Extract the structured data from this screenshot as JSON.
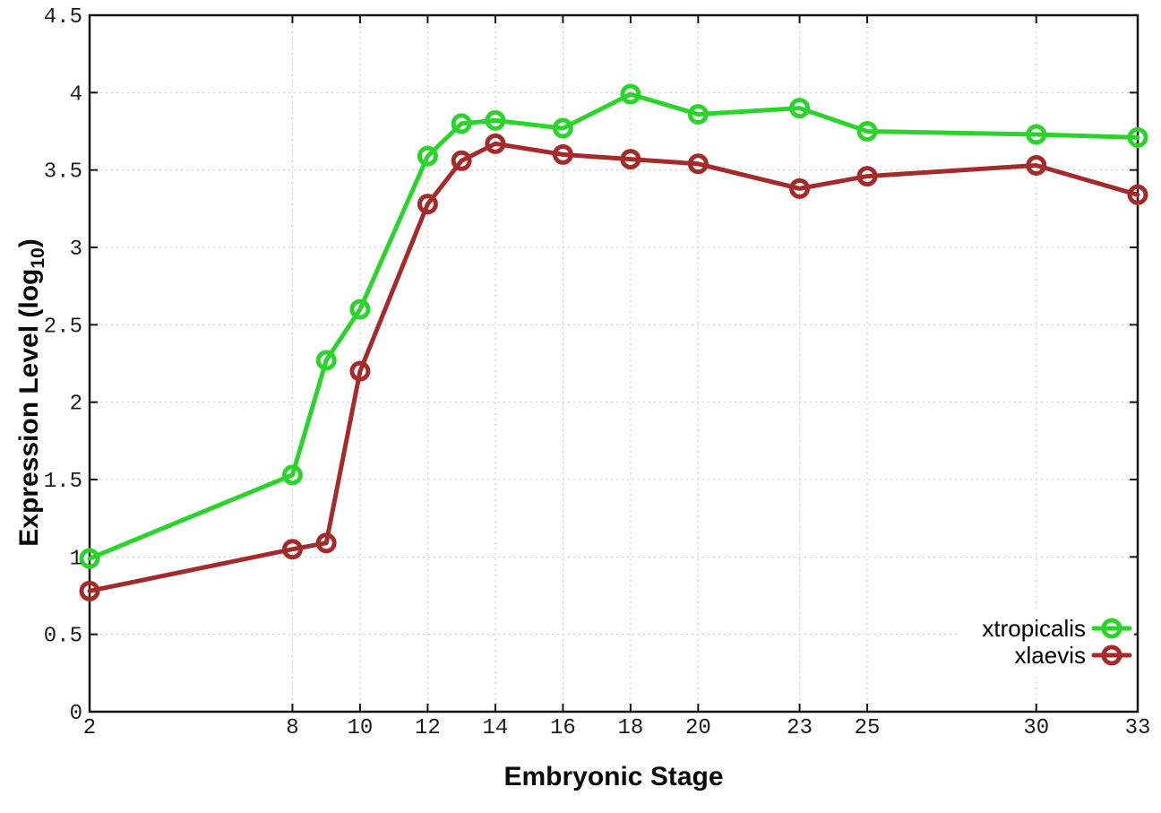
{
  "chart_data": {
    "type": "line",
    "title": "",
    "xlabel": "Embryonic Stage",
    "ylabel": "Expression Level (log10)",
    "ylabel_parts": {
      "prefix": "Expression Level (log",
      "sub": "10",
      "suffix": ")"
    },
    "x": [
      2,
      8,
      9,
      10,
      12,
      13,
      14,
      16,
      18,
      20,
      23,
      25,
      30,
      33
    ],
    "series": [
      {
        "name": "xtropicalis",
        "color": "#2bd42b",
        "values": [
          0.99,
          1.53,
          2.27,
          2.6,
          3.59,
          3.8,
          3.82,
          3.77,
          3.99,
          3.86,
          3.9,
          3.75,
          3.73,
          3.71
        ]
      },
      {
        "name": "xlaevis",
        "color": "#a52a2a",
        "values": [
          0.78,
          1.05,
          1.09,
          2.2,
          3.28,
          3.56,
          3.67,
          3.6,
          3.57,
          3.54,
          3.38,
          3.46,
          3.53,
          3.34
        ]
      }
    ],
    "xticks": {
      "values": [
        2,
        8,
        10,
        12,
        14,
        16,
        18,
        20,
        23,
        25,
        30,
        33
      ],
      "labels": [
        "2",
        "8",
        "10",
        "12",
        "14",
        "16",
        "18",
        "20",
        "23",
        "25",
        "30",
        "33"
      ]
    },
    "yticks": {
      "values": [
        0,
        0.5,
        1,
        1.5,
        2,
        2.5,
        3,
        3.5,
        4,
        4.5
      ],
      "labels": [
        "0",
        "0.5",
        "1",
        "1.5",
        "2",
        "2.5",
        "3",
        "3.5",
        "4",
        "4.5"
      ]
    },
    "xlim": [
      2,
      33
    ],
    "ylim": [
      0,
      4.5
    ],
    "grid": true,
    "legend_position": "bottom-right",
    "marker": "open-circle"
  },
  "colors": {
    "grid": "#c8c8c8",
    "axis": "#141414",
    "tick_text": "#1c1c1c",
    "xtropicalis": "#2bd42b",
    "xlaevis": "#a52a2a",
    "background": "#ffffff"
  }
}
